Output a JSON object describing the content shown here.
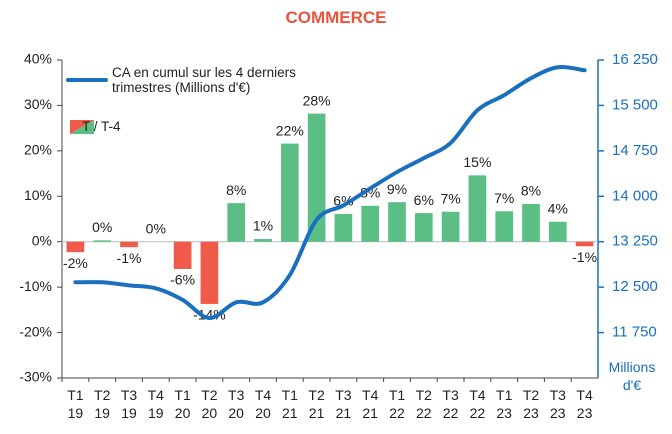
{
  "chart_data": {
    "type": "bar",
    "title": "COMMERCE",
    "categories": [
      "T1 19",
      "T2 19",
      "T3 19",
      "T4 19",
      "T1 20",
      "T2 20",
      "T3 20",
      "T4 20",
      "T1 21",
      "T2 21",
      "T3 21",
      "T4 21",
      "T1 22",
      "T2 22",
      "T3 22",
      "T4 22",
      "T1 23",
      "T2 23",
      "T3 23",
      "T4 23"
    ],
    "series": [
      {
        "name": "T / T-4",
        "type": "bar",
        "color": "#5bbf85",
        "negative_color": "#ef5a4b",
        "values": [
          -2.3,
          0.3,
          -1.2,
          0,
          -6,
          -13.7,
          8.5,
          0.6,
          21.6,
          28.2,
          6.1,
          7.9,
          8.7,
          6.3,
          6.6,
          14.6,
          6.7,
          8.3,
          4.4,
          -1
        ],
        "value_labels": [
          "-2%",
          "0%",
          "-1%",
          "0%",
          "-6%",
          "-14%",
          "8%",
          "1%",
          "22%",
          "28%",
          "6%",
          "8%",
          "9%",
          "6%",
          "7%",
          "15%",
          "7%",
          "8%",
          "4%",
          "-1%"
        ]
      },
      {
        "name": "CA en cumul sur les 4 derniers trimestres (Millions d'€)",
        "type": "line",
        "axis": "y2",
        "color": "#1a6fbf",
        "values": [
          12580,
          12580,
          12530,
          12480,
          12290,
          11990,
          12250,
          12250,
          12700,
          13610,
          13850,
          14130,
          14400,
          14630,
          14880,
          15420,
          15670,
          15950,
          16130,
          16080
        ]
      }
    ],
    "ylim": [
      -30,
      40
    ],
    "yticks": [
      {
        "value": -30,
        "label": "-30%"
      },
      {
        "value": -20,
        "label": "-20%"
      },
      {
        "value": -10,
        "label": "-10%"
      },
      {
        "value": 0,
        "label": "0%"
      },
      {
        "value": 10,
        "label": "10%"
      },
      {
        "value": 20,
        "label": "20%"
      },
      {
        "value": 30,
        "label": "30%"
      },
      {
        "value": 40,
        "label": "40%"
      }
    ],
    "y2lim": [
      11000,
      16250
    ],
    "y2ticks": [
      {
        "value": 11750,
        "label": "11 750"
      },
      {
        "value": 12500,
        "label": "12 500"
      },
      {
        "value": 13250,
        "label": "13 250"
      },
      {
        "value": 14000,
        "label": "14 000"
      },
      {
        "value": 14750,
        "label": "14 750"
      },
      {
        "value": 15500,
        "label": "15 500"
      },
      {
        "value": 16250,
        "label": "16 250"
      }
    ],
    "y2label": "Millions d'€",
    "y2color": "#1a6fbf",
    "grid": false
  }
}
